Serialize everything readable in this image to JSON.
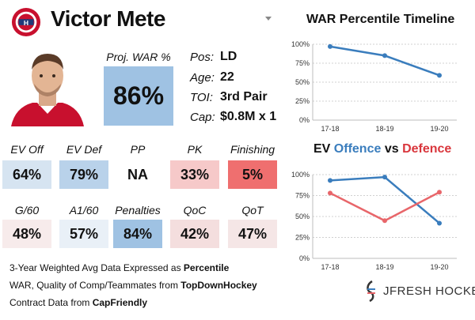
{
  "player": {
    "name": "Victor Mete"
  },
  "war": {
    "label": "Proj. WAR %",
    "value": "86%"
  },
  "info": [
    {
      "label": "Pos:",
      "value": "LD"
    },
    {
      "label": "Age:",
      "value": "22"
    },
    {
      "label": "TOI:",
      "value": "3rd Pair"
    },
    {
      "label": "Cap:",
      "value": "$0.8M x 1"
    }
  ],
  "metrics_row1": [
    {
      "label": "EV Off",
      "value": "64%",
      "color": "#d6e4f1"
    },
    {
      "label": "EV Def",
      "value": "79%",
      "color": "#b9d2ea"
    },
    {
      "label": "PP",
      "value": "NA",
      "color": "#ffffff"
    },
    {
      "label": "PK",
      "value": "33%",
      "color": "#f6c9c9"
    },
    {
      "label": "Finishing",
      "value": "5%",
      "color": "#ef6f6f"
    }
  ],
  "metrics_row2": [
    {
      "label": "G/60",
      "value": "48%",
      "color": "#f7ebeb"
    },
    {
      "label": "A1/60",
      "value": "57%",
      "color": "#e9f0f7"
    },
    {
      "label": "Penalties",
      "value": "84%",
      "color": "#9fc2e3"
    },
    {
      "label": "QoC",
      "value": "42%",
      "color": "#f4dede"
    },
    {
      "label": "QoT",
      "value": "47%",
      "color": "#f5e6e6"
    }
  ],
  "notes": {
    "line1_prefix": "3-Year Weighted Avg Data Expressed as ",
    "line1_bold": "Percentile",
    "line2_prefix": "WAR, Quality of Comp/Teammates from ",
    "line2_bold": "TopDownHockey",
    "line3_prefix": "Contract Data from ",
    "line3_bold": "CapFriendly"
  },
  "brand": {
    "text": "JFRESH HOCKEY"
  },
  "colors": {
    "war_box": "#9fc2e3",
    "line_blue": "#3a7dbd",
    "line_red": "#e8666a",
    "title_blue": "#3a7dbd",
    "title_red": "#d9363c"
  },
  "chart_data": [
    {
      "type": "line",
      "title": "WAR Percentile Timeline",
      "x": [
        "17-18",
        "18-19",
        "19-20"
      ],
      "y_ticks": [
        "100%",
        "75%",
        "50%",
        "25%",
        "0%"
      ],
      "ylim": [
        0,
        100
      ],
      "series": [
        {
          "values": [
            97,
            85,
            59
          ],
          "color": "#3a7dbd"
        }
      ]
    },
    {
      "type": "line",
      "title_parts": [
        "EV ",
        "Offence",
        " vs ",
        "Defence"
      ],
      "x": [
        "17-18",
        "18-19",
        "19-20"
      ],
      "y_ticks": [
        "100%",
        "75%",
        "50%",
        "25%",
        "0%"
      ],
      "ylim": [
        0,
        100
      ],
      "series": [
        {
          "name": "Offence",
          "values": [
            93,
            97,
            42
          ],
          "color": "#3a7dbd"
        },
        {
          "name": "Defence",
          "values": [
            78,
            45,
            79
          ],
          "color": "#e8666a"
        }
      ]
    }
  ]
}
